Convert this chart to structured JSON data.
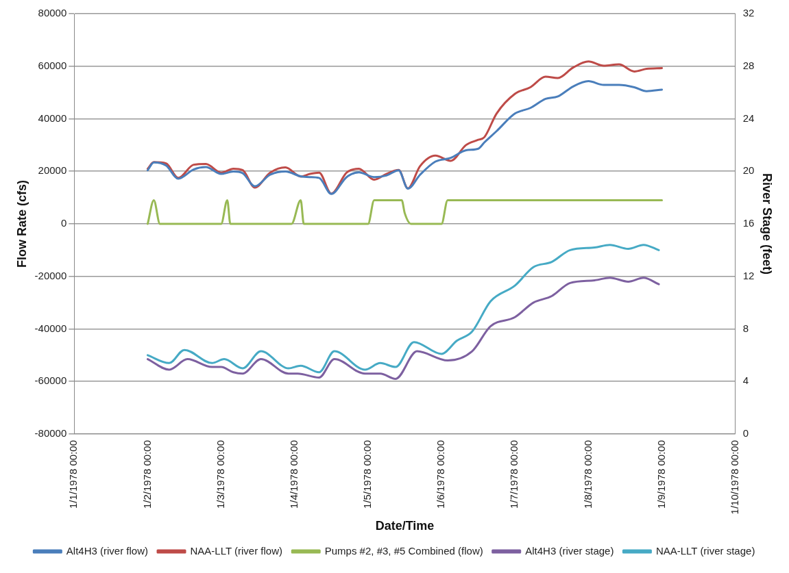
{
  "chart_data": {
    "type": "line",
    "xlabel": "Date/Time",
    "ylabel": "Flow Rate (cfs)",
    "y2label": "River Stage (feet)",
    "xlim": [
      "1978-01-01",
      "1978-01-10"
    ],
    "xticks": [
      {
        "value": "1978-01-01",
        "label": "1/1/1978 00:00"
      },
      {
        "value": "1978-01-02",
        "label": "1/2/1978 00:00"
      },
      {
        "value": "1978-01-03",
        "label": "1/3/1978 00:00"
      },
      {
        "value": "1978-01-04",
        "label": "1/4/1978 00:00"
      },
      {
        "value": "1978-01-05",
        "label": "1/5/1978 00:00"
      },
      {
        "value": "1978-01-06",
        "label": "1/6/1978 00:00"
      },
      {
        "value": "1978-01-07",
        "label": "1/7/1978 00:00"
      },
      {
        "value": "1978-01-08",
        "label": "1/8/1978 00:00"
      },
      {
        "value": "1978-01-09",
        "label": "1/9/1978 00:00"
      },
      {
        "value": "1978-01-10",
        "label": "1/10/1978 00:00"
      }
    ],
    "ylim": [
      -80000,
      80000
    ],
    "yticks": [
      -80000,
      -60000,
      -40000,
      -20000,
      0,
      20000,
      40000,
      60000,
      80000
    ],
    "y2lim": [
      0,
      32
    ],
    "y2ticks": [
      0,
      4,
      8,
      12,
      16,
      20,
      24,
      28,
      32
    ],
    "grid": "y",
    "legend": "bottom",
    "series": [
      {
        "name": "Alt4H3 (river flow)",
        "color": "#4a7ebb",
        "x": [
          "1978-01-02T00:00",
          "1978-01-02T02:00",
          "1978-01-02T06:00",
          "1978-01-02T10:00",
          "1978-01-02T15:00",
          "1978-01-02T19:00",
          "1978-01-03T00:00",
          "1978-01-03T04:00",
          "1978-01-03T07:00",
          "1978-01-03T11:00",
          "1978-01-03T16:00",
          "1978-01-03T21:00",
          "1978-01-04T02:00",
          "1978-01-04T05:00",
          "1978-01-04T08:00",
          "1978-01-04T12:00",
          "1978-01-04T17:00",
          "1978-01-04T21:00",
          "1978-01-05T02:00",
          "1978-01-05T06:00",
          "1978-01-05T10:00",
          "1978-01-05T13:00",
          "1978-01-05T17:00",
          "1978-01-05T22:00",
          "1978-01-06T03:00",
          "1978-01-06T08:00",
          "1978-01-06T12:00",
          "1978-01-06T14:00",
          "1978-01-06T18:00",
          "1978-01-07T00:00",
          "1978-01-07T05:00",
          "1978-01-07T10:00",
          "1978-01-07T14:00",
          "1978-01-07T19:00",
          "1978-01-08T00:00",
          "1978-01-08T05:00",
          "1978-01-08T10:00",
          "1978-01-08T15:00",
          "1978-01-08T19:00",
          "1978-01-09T00:00"
        ],
        "values": [
          20400,
          23400,
          22200,
          17200,
          20700,
          21600,
          19000,
          19900,
          19300,
          14300,
          18700,
          19900,
          18100,
          17800,
          17500,
          11400,
          17800,
          19600,
          17800,
          18400,
          20400,
          13400,
          18700,
          23700,
          25100,
          28000,
          28600,
          31000,
          35300,
          42000,
          44100,
          47600,
          48500,
          52300,
          54300,
          52900,
          52900,
          52000,
          50500,
          51100
        ]
      },
      {
        "name": "NAA-LLT (river flow)",
        "color": "#be4b48",
        "x": [
          "1978-01-02T00:00",
          "1978-01-02T02:00",
          "1978-01-02T06:00",
          "1978-01-02T10:00",
          "1978-01-02T15:00",
          "1978-01-02T19:00",
          "1978-01-03T00:00",
          "1978-01-03T04:00",
          "1978-01-03T07:00",
          "1978-01-03T11:00",
          "1978-01-03T16:00",
          "1978-01-03T21:00",
          "1978-01-04T02:00",
          "1978-01-04T05:00",
          "1978-01-04T08:00",
          "1978-01-04T12:00",
          "1978-01-04T17:00",
          "1978-01-04T21:00",
          "1978-01-05T02:00",
          "1978-01-05T06:00",
          "1978-01-05T10:00",
          "1978-01-05T13:00",
          "1978-01-05T17:00",
          "1978-01-05T22:00",
          "1978-01-06T03:00",
          "1978-01-06T08:00",
          "1978-01-06T12:00",
          "1978-01-06T14:00",
          "1978-01-06T18:00",
          "1978-01-07T00:00",
          "1978-01-07T05:00",
          "1978-01-07T10:00",
          "1978-01-07T14:00",
          "1978-01-07T19:00",
          "1978-01-08T00:00",
          "1978-01-08T05:00",
          "1978-01-08T10:00",
          "1978-01-08T15:00",
          "1978-01-08T19:00",
          "1978-01-09T00:00"
        ],
        "values": [
          21000,
          23500,
          23000,
          17500,
          22500,
          22800,
          19500,
          21000,
          20500,
          13800,
          19500,
          21500,
          18000,
          19000,
          19500,
          11500,
          19500,
          21000,
          16800,
          19000,
          20500,
          13500,
          22000,
          26000,
          24000,
          30000,
          32000,
          33000,
          42000,
          49500,
          52000,
          56000,
          55500,
          59500,
          61800,
          60200,
          60700,
          58000,
          59000,
          59300
        ]
      },
      {
        "name": "Pumps #2, #3, #5 Combined (flow)",
        "color": "#98b954",
        "x": [
          "1978-01-02T00:00",
          "1978-01-02T02:00",
          "1978-01-02T04:00",
          "1978-01-02T14:00",
          "1978-01-03T00:00",
          "1978-01-03T02:00",
          "1978-01-03T03:00",
          "1978-01-03T14:00",
          "1978-01-03T23:00",
          "1978-01-04T02:00",
          "1978-01-04T03:00",
          "1978-01-04T12:00",
          "1978-01-05T00:00",
          "1978-01-05T02:00",
          "1978-01-05T11:00",
          "1978-01-05T12:00",
          "1978-01-05T14:00",
          "1978-01-06T00:00",
          "1978-01-06T02:00",
          "1978-01-06T12:00",
          "1978-01-07T00:00",
          "1978-01-07T12:00",
          "1978-01-08T00:00",
          "1978-01-08T12:00",
          "1978-01-09T00:00"
        ],
        "values": [
          0,
          9000,
          0,
          0,
          0,
          9000,
          0,
          0,
          0,
          9000,
          0,
          0,
          0,
          9000,
          9000,
          4000,
          0,
          0,
          9000,
          9000,
          9000,
          9000,
          9000,
          9000,
          9000
        ]
      },
      {
        "name": "Alt4H3 (river stage)",
        "color": "#7d60a0",
        "axis": "y2",
        "x": [
          "1978-01-02T00:00",
          "1978-01-02T07:00",
          "1978-01-02T13:00",
          "1978-01-02T21:00",
          "1978-01-03T00:00",
          "1978-01-03T04:00",
          "1978-01-03T07:00",
          "1978-01-03T13:00",
          "1978-01-03T22:00",
          "1978-01-04T01:00",
          "1978-01-04T08:00",
          "1978-01-04T13:00",
          "1978-01-04T23:00",
          "1978-01-05T04:00",
          "1978-01-05T09:00",
          "1978-01-05T16:00",
          "1978-01-06T02:00",
          "1978-01-06T10:00",
          "1978-01-06T16:00",
          "1978-01-07T00:00",
          "1978-01-07T06:00",
          "1978-01-07T12:00",
          "1978-01-07T18:00",
          "1978-01-08T02:00",
          "1978-01-08T07:00",
          "1978-01-08T13:00",
          "1978-01-08T18:00",
          "1978-01-08T23:00"
        ],
        "values": [
          5.7,
          4.9,
          5.7,
          5.1,
          5.1,
          4.7,
          4.6,
          5.7,
          4.6,
          4.6,
          4.3,
          5.7,
          4.6,
          4.6,
          4.2,
          6.3,
          5.6,
          6.3,
          8.2,
          8.9,
          10.0,
          10.5,
          11.5,
          11.7,
          11.9,
          11.6,
          11.9,
          11.4
        ]
      },
      {
        "name": "NAA-LLT (river stage)",
        "color": "#46aac5",
        "axis": "y2",
        "x": [
          "1978-01-02T00:00",
          "1978-01-02T07:00",
          "1978-01-02T12:00",
          "1978-01-02T21:00",
          "1978-01-03T01:00",
          "1978-01-03T07:00",
          "1978-01-03T13:00",
          "1978-01-03T22:00",
          "1978-01-04T02:00",
          "1978-01-04T08:00",
          "1978-01-04T13:00",
          "1978-01-04T23:00",
          "1978-01-05T04:00",
          "1978-01-05T09:00",
          "1978-01-05T15:00",
          "1978-01-06T00:00",
          "1978-01-06T05:00",
          "1978-01-06T10:00",
          "1978-01-06T16:00",
          "1978-01-07T00:00",
          "1978-01-07T06:00",
          "1978-01-07T12:00",
          "1978-01-07T18:00",
          "1978-01-08T02:00",
          "1978-01-08T07:00",
          "1978-01-08T13:00",
          "1978-01-08T18:00",
          "1978-01-08T23:00"
        ],
        "values": [
          6.0,
          5.4,
          6.4,
          5.4,
          5.7,
          5.0,
          6.3,
          5.0,
          5.2,
          4.7,
          6.3,
          4.9,
          5.4,
          5.1,
          7.0,
          6.1,
          7.1,
          7.8,
          10.1,
          11.3,
          12.7,
          13.1,
          14.0,
          14.2,
          14.4,
          14.1,
          14.4,
          14.0
        ]
      }
    ]
  }
}
